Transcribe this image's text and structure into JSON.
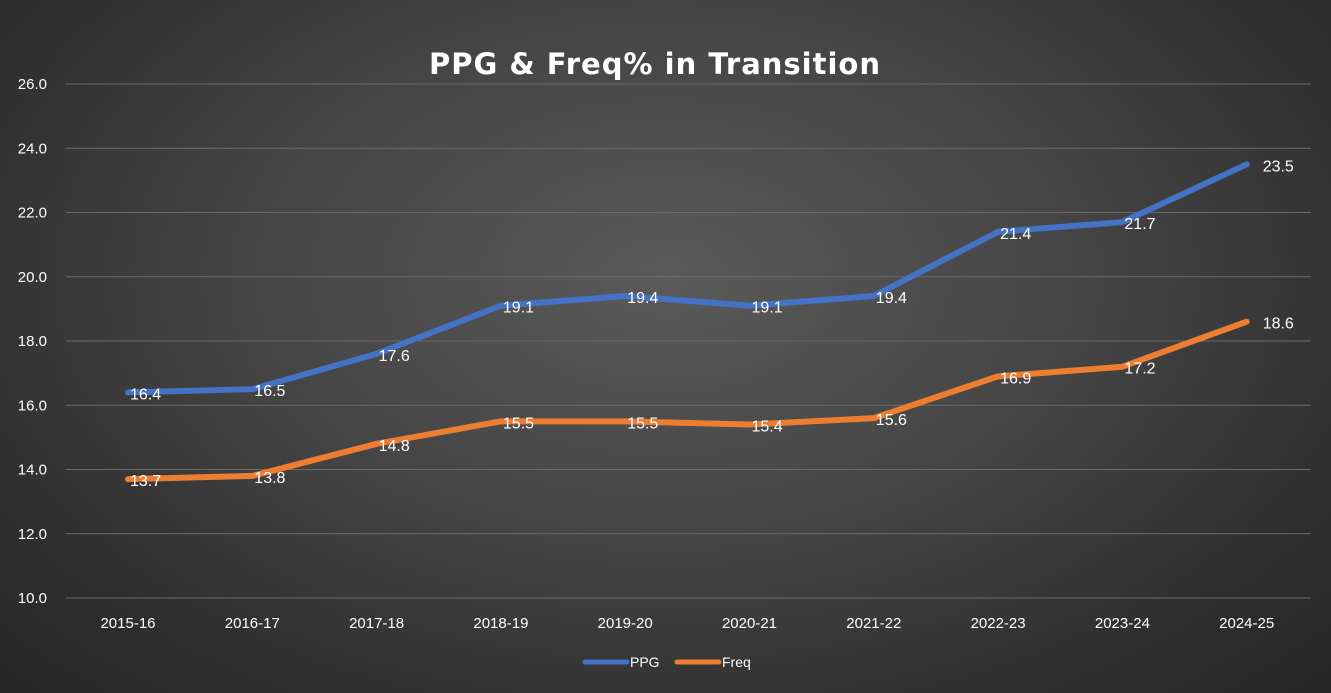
{
  "chart_data": {
    "type": "line",
    "title": "PPG & Freq% in Transition",
    "xlabel": "",
    "ylabel": "",
    "categories": [
      "2015-16",
      "2016-17",
      "2017-18",
      "2018-19",
      "2019-20",
      "2020-21",
      "2021-22",
      "2022-23",
      "2023-24",
      "2024-25"
    ],
    "ylim": [
      10,
      26
    ],
    "yticks": [
      "10.0",
      "12.0",
      "14.0",
      "16.0",
      "18.0",
      "20.0",
      "22.0",
      "24.0",
      "26.0"
    ],
    "grid": true,
    "legend_position": "bottom",
    "series": [
      {
        "name": "PPG",
        "color": "#4472c4",
        "values": [
          16.4,
          16.5,
          17.6,
          19.1,
          19.4,
          19.1,
          19.4,
          21.4,
          21.7,
          23.5
        ],
        "labels": [
          "16.4",
          "16.5",
          "17.6",
          "19.1",
          "19.4",
          "19.1",
          "19.4",
          "21.4",
          "21.7",
          "23.5"
        ]
      },
      {
        "name": "Freq",
        "color": "#ed7d31",
        "values": [
          13.7,
          13.8,
          14.8,
          15.5,
          15.5,
          15.4,
          15.6,
          16.9,
          17.2,
          18.6
        ],
        "labels": [
          "13.7",
          "13.8",
          "14.8",
          "15.5",
          "15.5",
          "15.4",
          "15.6",
          "16.9",
          "17.2",
          "18.6"
        ]
      }
    ]
  }
}
